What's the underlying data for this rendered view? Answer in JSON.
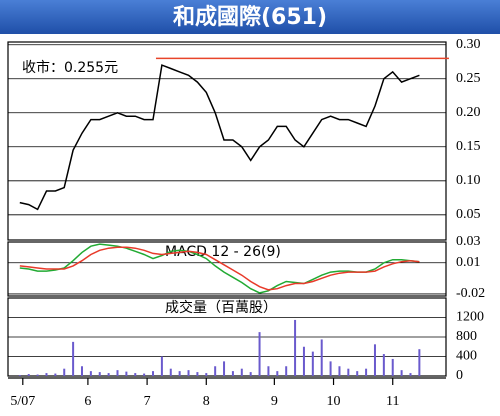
{
  "title": "和成國際(651)",
  "chart_data": [
    {
      "type": "line",
      "annotation": "收市：0.255元",
      "color": "#000000",
      "x": [
        0,
        3,
        6,
        9,
        12,
        15,
        18,
        21,
        24,
        27,
        30,
        33,
        36,
        39,
        42,
        45,
        48,
        51,
        54,
        57,
        60,
        63,
        66,
        69,
        72,
        75,
        78,
        81,
        84,
        87,
        90,
        93,
        96,
        99,
        102,
        105,
        108,
        111,
        114,
        117,
        120,
        123,
        126,
        129,
        132,
        135
      ],
      "values": [
        0.068,
        0.065,
        0.058,
        0.085,
        0.085,
        0.09,
        0.145,
        0.17,
        0.19,
        0.19,
        0.195,
        0.2,
        0.195,
        0.195,
        0.19,
        0.19,
        0.27,
        0.265,
        0.26,
        0.255,
        0.245,
        0.23,
        0.2,
        0.16,
        0.16,
        0.15,
        0.13,
        0.15,
        0.16,
        0.18,
        0.18,
        0.16,
        0.15,
        0.17,
        0.19,
        0.195,
        0.19,
        0.19,
        0.185,
        0.18,
        0.21,
        0.25,
        0.26,
        0.245,
        0.25,
        0.255
      ],
      "reference_line": {
        "y": 0.28,
        "x": [
          46,
          145
        ],
        "color": "#e8442a"
      },
      "xlim": [
        -4,
        144
      ],
      "ylim": [
        0.013,
        0.304
      ],
      "yticks": [
        {
          "value": 0.3,
          "label": "0.30"
        },
        0.25,
        {
          "value": 0.2,
          "label": "0.20"
        },
        0.15,
        {
          "value": 0.1,
          "label": "0.10"
        },
        0.05
      ],
      "grid": true
    },
    {
      "type": "line",
      "annotation": "MACD 12 - 26(9)",
      "x": [
        0,
        3,
        6,
        9,
        12,
        15,
        18,
        21,
        24,
        27,
        30,
        33,
        36,
        39,
        42,
        45,
        48,
        51,
        54,
        57,
        60,
        63,
        66,
        69,
        72,
        75,
        78,
        81,
        84,
        87,
        90,
        93,
        96,
        99,
        102,
        105,
        108,
        111,
        114,
        117,
        120,
        123,
        126,
        129,
        132,
        135
      ],
      "series": [
        {
          "color": "#22aa33",
          "values": [
            0.005,
            0.004,
            0.002,
            0.002,
            0.003,
            0.005,
            0.012,
            0.02,
            0.026,
            0.028,
            0.027,
            0.026,
            0.024,
            0.021,
            0.018,
            0.014,
            0.017,
            0.021,
            0.022,
            0.021,
            0.018,
            0.014,
            0.007,
            0.001,
            -0.004,
            -0.009,
            -0.015,
            -0.019,
            -0.017,
            -0.012,
            -0.008,
            -0.009,
            -0.01,
            -0.006,
            -0.002,
            0.001,
            0.002,
            0.002,
            0.001,
            0.001,
            0.004,
            0.01,
            0.013,
            0.013,
            0.012,
            0.011
          ]
        },
        {
          "color": "#e83a2a",
          "values": [
            0.007,
            0.006,
            0.005,
            0.004,
            0.004,
            0.004,
            0.007,
            0.012,
            0.018,
            0.022,
            0.024,
            0.025,
            0.025,
            0.024,
            0.022,
            0.019,
            0.018,
            0.019,
            0.02,
            0.021,
            0.02,
            0.018,
            0.013,
            0.008,
            0.003,
            -0.002,
            -0.008,
            -0.013,
            -0.016,
            -0.015,
            -0.012,
            -0.01,
            -0.01,
            -0.008,
            -0.005,
            -0.002,
            0,
            0.001,
            0.001,
            0.001,
            0.002,
            0.006,
            0.009,
            0.011,
            0.012,
            0.011
          ]
        }
      ],
      "xlim": [
        -4,
        144
      ],
      "ylim": [
        -0.022,
        0.03
      ],
      "yticks": [
        0.03,
        0.01,
        -0.02
      ],
      "grid": true
    },
    {
      "type": "bar",
      "annotation": "成交量（百萬股）",
      "color": "#6a5acd",
      "x": [
        0,
        3,
        6,
        9,
        12,
        15,
        18,
        21,
        24,
        27,
        30,
        33,
        36,
        39,
        42,
        45,
        48,
        51,
        54,
        57,
        60,
        63,
        66,
        69,
        72,
        75,
        78,
        81,
        84,
        87,
        90,
        93,
        96,
        99,
        102,
        105,
        108,
        111,
        114,
        117,
        120,
        123,
        126,
        129,
        132,
        135
      ],
      "values": [
        20,
        40,
        30,
        60,
        50,
        150,
        700,
        200,
        100,
        80,
        60,
        120,
        90,
        60,
        50,
        100,
        400,
        150,
        100,
        120,
        80,
        60,
        200,
        300,
        100,
        150,
        80,
        900,
        200,
        100,
        200,
        1150,
        600,
        500,
        750,
        300,
        200,
        150,
        100,
        150,
        650,
        450,
        350,
        120,
        60,
        550
      ],
      "xlim": [
        -4,
        144
      ],
      "ylim": [
        0,
        1600
      ],
      "yticks": [
        1200,
        800,
        400,
        0
      ],
      "grid": true,
      "xticks": [
        {
          "value": 1,
          "label": "5/07"
        },
        {
          "value": 23,
          "label": "6"
        },
        {
          "value": 43,
          "label": "7"
        },
        {
          "value": 63,
          "label": "8"
        },
        {
          "value": 86,
          "label": "9"
        },
        {
          "value": 106,
          "label": "10"
        },
        {
          "value": 126,
          "label": "11"
        }
      ]
    }
  ]
}
